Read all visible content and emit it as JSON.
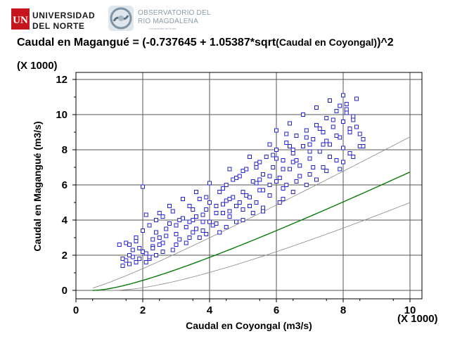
{
  "logos": {
    "university": {
      "line1": "UNIVERSIDAD",
      "line2": "DEL NORTE",
      "mark": "UN"
    },
    "observatory": {
      "line1": "OBSERVATORIO DEL",
      "line2": "RIO MAGDALENA",
      "sub": "Universidad del Norte"
    }
  },
  "colors": {
    "points": "#2222cc",
    "fit": "#0a7a0a",
    "grid": "#555555",
    "band": "#888888"
  },
  "chart_data": {
    "type": "scatter",
    "title_main": "Caudal en Magangué = (-0.737645 + 1.05387*sqrt",
    "title_small": "(Caudal en Coyongal)",
    "title_end": ")^2",
    "xlabel": "Caudal en Coyongal (m3/s)",
    "ylabel": "Caudal en Magangué (m3/s)",
    "x_multiplier": "(X 1000)",
    "y_multiplier": "(X 1000)",
    "xlim": [
      0,
      10
    ],
    "ylim": [
      0,
      12
    ],
    "x_ticks": [
      "0",
      "2",
      "4",
      "6",
      "8",
      "10"
    ],
    "y_ticks": [
      "0",
      "2",
      "4",
      "6",
      "8",
      "10",
      "12"
    ],
    "grid": true,
    "fit": {
      "intercept": -0.737645,
      "slope": 1.05387,
      "model": "squared-sqrt"
    },
    "points": [
      [
        1.3,
        2.6
      ],
      [
        1.5,
        2.7
      ],
      [
        1.6,
        1.5
      ],
      [
        1.7,
        1.9
      ],
      [
        1.8,
        2.8
      ],
      [
        2.0,
        5.9
      ],
      [
        2.1,
        4.3
      ],
      [
        2.2,
        1.8
      ],
      [
        2.3,
        2.5
      ],
      [
        2.4,
        3.3
      ],
      [
        2.5,
        4.4
      ],
      [
        2.6,
        2.7
      ],
      [
        2.7,
        3.1
      ],
      [
        2.8,
        3.8
      ],
      [
        2.9,
        4.5
      ],
      [
        3.0,
        3.2
      ],
      [
        3.1,
        2.9
      ],
      [
        3.2,
        4.1
      ],
      [
        3.3,
        3.6
      ],
      [
        3.4,
        4.8
      ],
      [
        3.5,
        3.3
      ],
      [
        3.6,
        4.2
      ],
      [
        3.7,
        5.2
      ],
      [
        3.8,
        3.9
      ],
      [
        3.9,
        4.6
      ],
      [
        4.0,
        5.0
      ],
      [
        4.1,
        3.7
      ],
      [
        4.2,
        4.4
      ],
      [
        4.3,
        5.6
      ],
      [
        4.4,
        4.9
      ],
      [
        4.5,
        6.0
      ],
      [
        4.6,
        4.5
      ],
      [
        4.7,
        5.3
      ],
      [
        4.8,
        6.4
      ],
      [
        4.9,
        5.0
      ],
      [
        5.0,
        6.8
      ],
      [
        5.1,
        5.4
      ],
      [
        5.2,
        4.8
      ],
      [
        5.3,
        6.2
      ],
      [
        5.4,
        7.2
      ],
      [
        5.5,
        5.7
      ],
      [
        5.6,
        6.6
      ],
      [
        5.7,
        7.6
      ],
      [
        5.8,
        6.0
      ],
      [
        5.9,
        7.0
      ],
      [
        6.0,
        8.0
      ],
      [
        6.1,
        6.4
      ],
      [
        6.2,
        7.4
      ],
      [
        6.3,
        8.4
      ],
      [
        6.4,
        6.9
      ],
      [
        6.5,
        7.8
      ],
      [
        6.6,
        8.8
      ],
      [
        6.7,
        7.1
      ],
      [
        6.8,
        8.2
      ],
      [
        6.9,
        9.1
      ],
      [
        7.0,
        7.5
      ],
      [
        7.1,
        8.6
      ],
      [
        7.2,
        9.4
      ],
      [
        7.3,
        7.9
      ],
      [
        7.4,
        9.0
      ],
      [
        7.5,
        9.8
      ],
      [
        7.6,
        8.3
      ],
      [
        7.7,
        9.3
      ],
      [
        7.8,
        10.2
      ],
      [
        7.9,
        8.7
      ],
      [
        8.0,
        9.6
      ],
      [
        8.1,
        10.6
      ],
      [
        8.2,
        9.0
      ],
      [
        8.3,
        9.9
      ],
      [
        8.4,
        10.9
      ],
      [
        8.5,
        8.2
      ],
      [
        8.6,
        8.6
      ],
      [
        8.0,
        11.1
      ],
      [
        7.6,
        10.8
      ],
      [
        7.2,
        10.4
      ],
      [
        6.8,
        10.0
      ],
      [
        6.4,
        9.5
      ],
      [
        6.0,
        9.1
      ],
      [
        8.2,
        7.8
      ],
      [
        7.8,
        7.4
      ],
      [
        7.4,
        7.0
      ],
      [
        7.0,
        6.6
      ],
      [
        6.6,
        6.2
      ],
      [
        6.2,
        5.8
      ],
      [
        5.8,
        5.4
      ],
      [
        5.4,
        5.0
      ],
      [
        5.0,
        4.6
      ],
      [
        4.6,
        4.2
      ],
      [
        4.2,
        3.8
      ],
      [
        3.8,
        3.4
      ],
      [
        3.4,
        3.0
      ],
      [
        3.0,
        2.6
      ],
      [
        2.6,
        2.2
      ],
      [
        2.2,
        1.9
      ],
      [
        1.8,
        1.6
      ],
      [
        1.4,
        1.4
      ],
      [
        1.4,
        1.8
      ],
      [
        2.0,
        2.2
      ],
      [
        2.5,
        3.0
      ],
      [
        3.5,
        4.0
      ],
      [
        4.5,
        5.1
      ],
      [
        5.5,
        6.3
      ],
      [
        6.5,
        7.3
      ],
      [
        7.5,
        8.5
      ],
      [
        4.0,
        6.1
      ],
      [
        3.6,
        5.6
      ],
      [
        3.2,
        5.2
      ],
      [
        2.8,
        4.8
      ],
      [
        4.6,
        6.9
      ],
      [
        5.2,
        7.6
      ],
      [
        5.8,
        8.3
      ],
      [
        6.3,
        8.9
      ],
      [
        4.3,
        3.3
      ],
      [
        5.0,
        4.0
      ],
      [
        5.6,
        4.7
      ],
      [
        6.2,
        5.2
      ],
      [
        6.9,
        6.0
      ],
      [
        7.5,
        6.8
      ],
      [
        8.0,
        7.3
      ],
      [
        8.5,
        8.9
      ],
      [
        8.4,
        9.3
      ],
      [
        8.3,
        9.7
      ],
      [
        8.1,
        10.1
      ],
      [
        7.9,
        10.5
      ],
      [
        2.1,
        1.6
      ],
      [
        2.9,
        2.3
      ],
      [
        3.7,
        3.0
      ],
      [
        4.5,
        3.6
      ],
      [
        5.3,
        4.4
      ],
      [
        6.1,
        5.0
      ],
      [
        1.6,
        2.0
      ],
      [
        1.9,
        2.4
      ],
      [
        2.3,
        2.9
      ],
      [
        2.7,
        3.5
      ],
      [
        3.1,
        4.0
      ],
      [
        3.5,
        4.6
      ],
      [
        3.9,
        5.3
      ],
      [
        4.4,
        5.8
      ],
      [
        4.9,
        6.5
      ],
      [
        5.4,
        7.0
      ],
      [
        5.9,
        7.7
      ],
      [
        6.4,
        8.2
      ],
      [
        6.9,
        8.7
      ],
      [
        7.3,
        9.2
      ],
      [
        7.7,
        9.7
      ],
      [
        8.1,
        10.3
      ],
      [
        3.3,
        2.7
      ],
      [
        3.9,
        3.2
      ],
      [
        4.8,
        3.9
      ],
      [
        5.6,
        4.5
      ],
      [
        6.5,
        5.6
      ],
      [
        7.2,
        6.3
      ],
      [
        7.9,
        6.9
      ],
      [
        8.3,
        7.6
      ],
      [
        8.6,
        8.2
      ],
      [
        2.4,
        2.0
      ],
      [
        3.0,
        3.7
      ],
      [
        3.4,
        3.9
      ],
      [
        3.8,
        4.3
      ],
      [
        4.2,
        4.8
      ],
      [
        4.6,
        5.2
      ],
      [
        5.0,
        5.6
      ],
      [
        5.4,
        6.1
      ],
      [
        5.8,
        6.5
      ],
      [
        6.2,
        6.9
      ],
      [
        6.6,
        7.4
      ],
      [
        7.0,
        7.9
      ],
      [
        7.4,
        8.3
      ],
      [
        7.8,
        8.8
      ],
      [
        8.2,
        9.2
      ],
      [
        2.2,
        3.7
      ],
      [
        2.4,
        4.0
      ],
      [
        2.6,
        4.2
      ],
      [
        2.0,
        3.4
      ],
      [
        1.8,
        3.0
      ],
      [
        1.6,
        2.6
      ],
      [
        4.7,
        6.3
      ],
      [
        5.1,
        6.9
      ],
      [
        5.5,
        7.3
      ],
      [
        6.0,
        7.5
      ],
      [
        6.5,
        8.0
      ],
      [
        7.0,
        8.3
      ],
      [
        6.3,
        6.0
      ],
      [
        6.7,
        6.5
      ],
      [
        7.1,
        7.0
      ],
      [
        7.6,
        7.6
      ],
      [
        8.0,
        8.1
      ],
      [
        3.6,
        3.5
      ],
      [
        4.0,
        3.9
      ],
      [
        4.4,
        4.4
      ],
      [
        4.8,
        4.8
      ],
      [
        5.2,
        5.3
      ],
      [
        5.6,
        5.7
      ],
      [
        6.0,
        6.2
      ],
      [
        1.5,
        1.7
      ],
      [
        1.7,
        2.3
      ],
      [
        1.9,
        1.8
      ],
      [
        2.1,
        2.1
      ],
      [
        2.3,
        2.4
      ],
      [
        2.5,
        2.6
      ]
    ]
  }
}
